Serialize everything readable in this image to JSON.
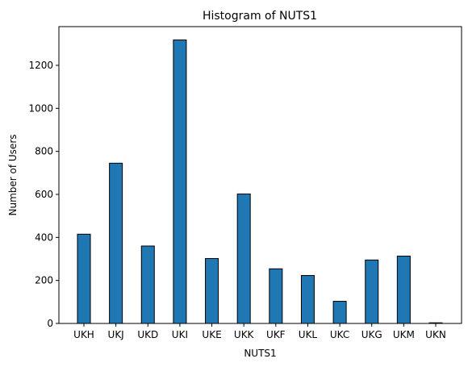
{
  "chart_data": {
    "type": "bar",
    "title": "Histogram of NUTS1",
    "xlabel": "NUTS1",
    "ylabel": "Number of Users",
    "categories": [
      "UKH",
      "UKJ",
      "UKD",
      "UKI",
      "UKE",
      "UKK",
      "UKF",
      "UKL",
      "UKC",
      "UKG",
      "UKM",
      "UKN"
    ],
    "values": [
      415,
      745,
      360,
      1318,
      302,
      602,
      254,
      223,
      103,
      295,
      313,
      3
    ],
    "ylim": [
      0,
      1380
    ],
    "yticks": [
      0,
      200,
      400,
      600,
      800,
      1000,
      1200
    ],
    "grid": false,
    "bar_color": "#1f77b4",
    "edge_color": "#000000"
  }
}
